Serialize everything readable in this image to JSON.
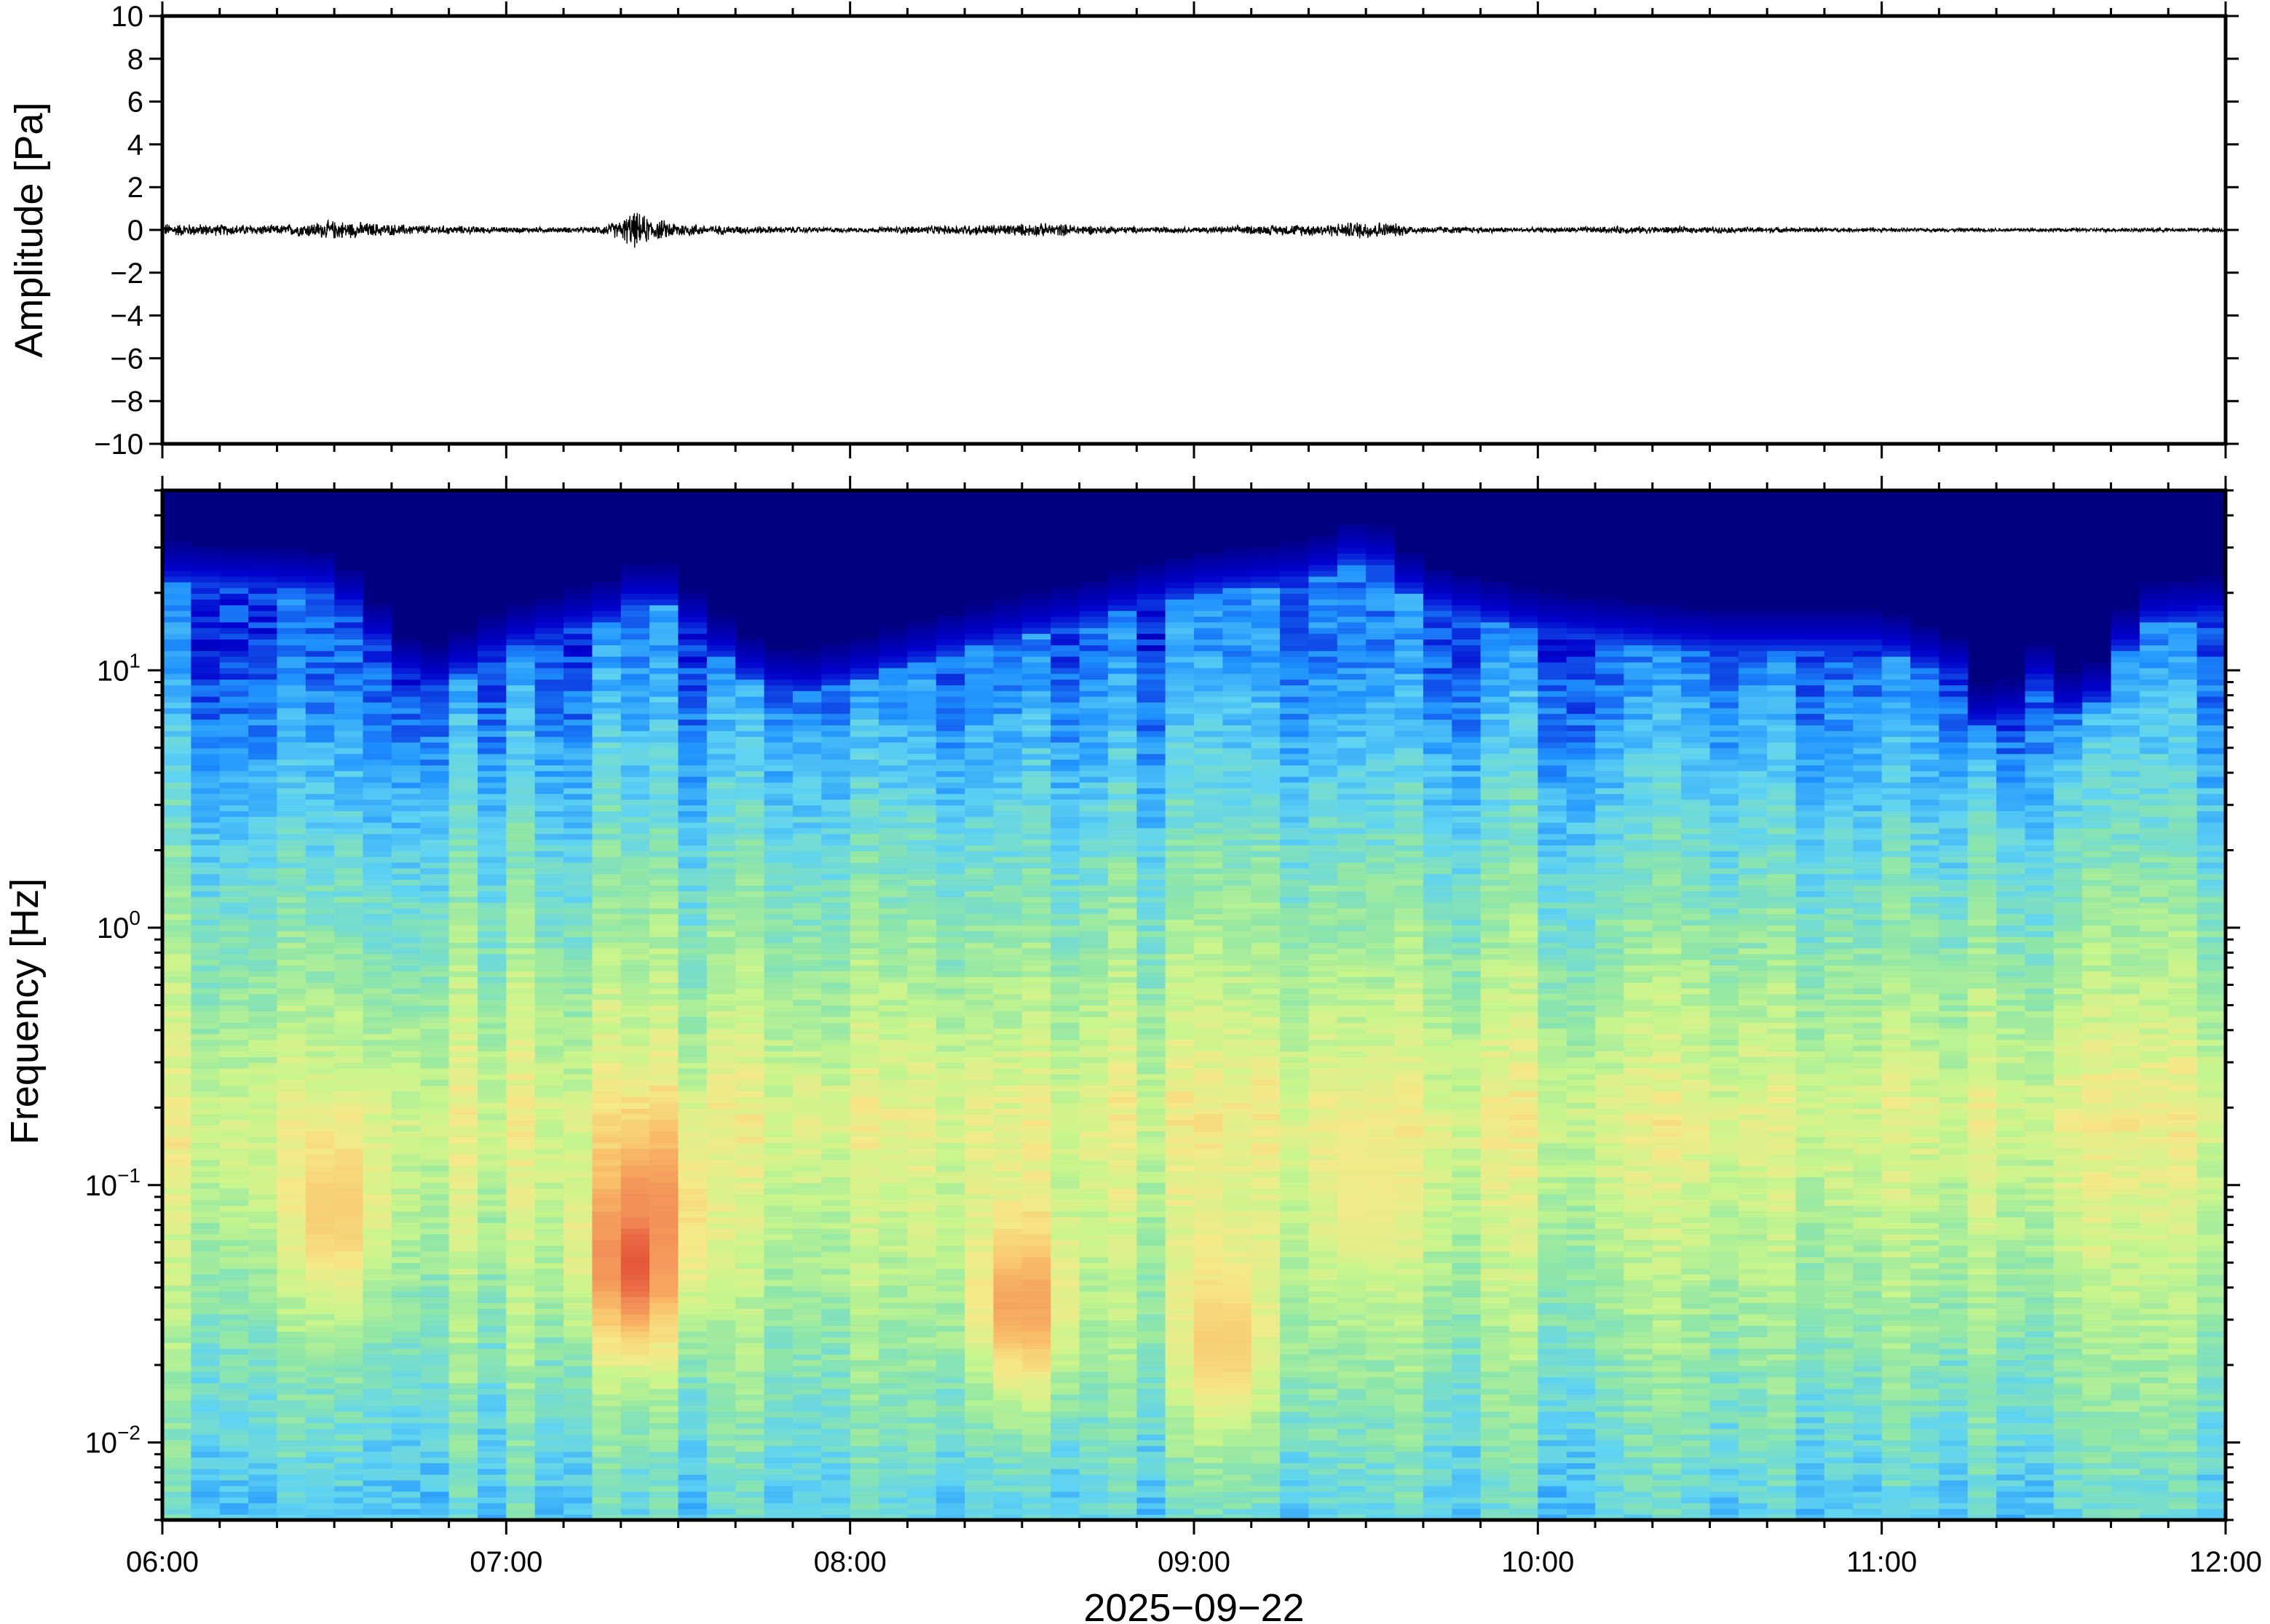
{
  "chart_data": [
    {
      "type": "line",
      "ylabel": "Amplitude [Pa]",
      "ylim": [
        -10,
        10
      ],
      "yticks": [
        {
          "value": 10,
          "label": "10"
        },
        {
          "value": 8,
          "label": "8"
        },
        {
          "value": 6,
          "label": "6"
        },
        {
          "value": 4,
          "label": "4"
        },
        {
          "value": 2,
          "label": "2"
        },
        {
          "value": 0,
          "label": "0"
        },
        {
          "value": -2,
          "label": "−2"
        },
        {
          "value": -4,
          "label": "−4"
        },
        {
          "value": -6,
          "label": "−6"
        },
        {
          "value": -8,
          "label": "−8"
        },
        {
          "value": -10,
          "label": "−10"
        }
      ],
      "xlim": [
        "06:00",
        "12:00"
      ],
      "baseline": 0,
      "envelope": [
        {
          "time": "06:00",
          "amp": 0.35
        },
        {
          "time": "06:20",
          "amp": 0.25
        },
        {
          "time": "06:30",
          "amp": 0.5
        },
        {
          "time": "06:40",
          "amp": 0.3
        },
        {
          "time": "07:00",
          "amp": 0.15
        },
        {
          "time": "07:15",
          "amp": 0.15
        },
        {
          "time": "07:20",
          "amp": 0.5
        },
        {
          "time": "07:22",
          "amp": 1.0
        },
        {
          "time": "07:26",
          "amp": 0.55
        },
        {
          "time": "07:35",
          "amp": 0.25
        },
        {
          "time": "08:00",
          "amp": 0.12
        },
        {
          "time": "08:25",
          "amp": 0.3
        },
        {
          "time": "08:35",
          "amp": 0.35
        },
        {
          "time": "08:45",
          "amp": 0.2
        },
        {
          "time": "09:00",
          "amp": 0.15
        },
        {
          "time": "09:25",
          "amp": 0.35
        },
        {
          "time": "09:30",
          "amp": 0.5
        },
        {
          "time": "09:40",
          "amp": 0.2
        },
        {
          "time": "10:00",
          "amp": 0.12
        },
        {
          "time": "10:15",
          "amp": 0.2
        },
        {
          "time": "11:00",
          "amp": 0.1
        },
        {
          "time": "12:00",
          "amp": 0.1
        }
      ],
      "grid": false,
      "legend": "none"
    },
    {
      "type": "heatmap",
      "ylabel": "Frequency [Hz]",
      "xlabel": "2025−09−22",
      "yscale": "log",
      "ylim": [
        0.005,
        50
      ],
      "yticks": [
        {
          "value": 10,
          "base": "10",
          "exp": "1"
        },
        {
          "value": 1,
          "base": "10",
          "exp": "0"
        },
        {
          "value": 0.1,
          "base": "10",
          "exp": "−1"
        },
        {
          "value": 0.01,
          "base": "10",
          "exp": "−2"
        }
      ],
      "xticks": [
        "06:00",
        "07:00",
        "08:00",
        "09:00",
        "10:00",
        "11:00",
        "12:00"
      ],
      "xlim": [
        "06:00",
        "12:00"
      ],
      "colormap": [
        "#000080",
        "#0000cd",
        "#1e90ff",
        "#5fd3f2",
        "#8ee6a8",
        "#c8f58c",
        "#f5e98a",
        "#f9c46c",
        "#f28c56",
        "#e34a33"
      ],
      "noise_floor_hz": [
        {
          "time": "06:00",
          "hz": 22
        },
        {
          "time": "06:30",
          "hz": 20
        },
        {
          "time": "06:45",
          "hz": 8
        },
        {
          "time": "07:00",
          "hz": 12
        },
        {
          "time": "07:20",
          "hz": 16
        },
        {
          "time": "07:25",
          "hz": 20
        },
        {
          "time": "07:40",
          "hz": 10
        },
        {
          "time": "07:50",
          "hz": 8
        },
        {
          "time": "08:00",
          "hz": 9
        },
        {
          "time": "08:20",
          "hz": 12
        },
        {
          "time": "08:40",
          "hz": 15
        },
        {
          "time": "09:00",
          "hz": 20
        },
        {
          "time": "09:20",
          "hz": 22
        },
        {
          "time": "09:30",
          "hz": 28
        },
        {
          "time": "09:40",
          "hz": 18
        },
        {
          "time": "10:00",
          "hz": 14
        },
        {
          "time": "10:30",
          "hz": 12
        },
        {
          "time": "11:00",
          "hz": 12
        },
        {
          "time": "11:15",
          "hz": 9
        },
        {
          "time": "11:20",
          "hz": 4
        },
        {
          "time": "11:25",
          "hz": 10
        },
        {
          "time": "11:35",
          "hz": 6
        },
        {
          "time": "11:45",
          "hz": 15
        },
        {
          "time": "12:00",
          "hz": 16
        }
      ],
      "hotspots": [
        {
          "time": "07:22",
          "hz": 0.05,
          "level": 9
        },
        {
          "time": "07:25",
          "hz": 0.08,
          "level": 8
        },
        {
          "time": "06:30",
          "hz": 0.08,
          "level": 7
        },
        {
          "time": "08:30",
          "hz": 0.035,
          "level": 8
        },
        {
          "time": "09:05",
          "hz": 0.025,
          "level": 7
        },
        {
          "time": "09:30",
          "hz": 0.1,
          "level": 6
        }
      ],
      "grid": false,
      "legend": "none"
    }
  ]
}
